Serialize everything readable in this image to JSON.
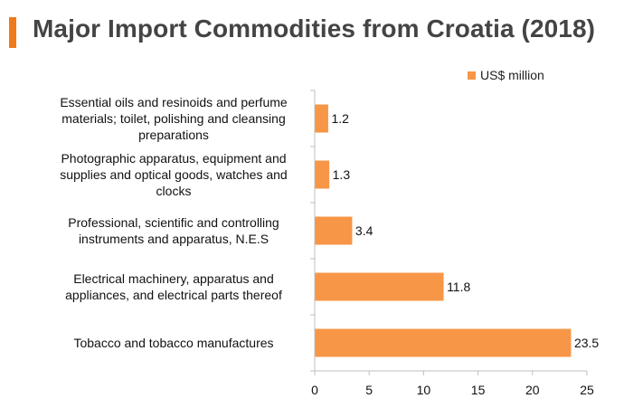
{
  "header": {
    "title": "Major Import Commodities from Croatia (2018)"
  },
  "colors": {
    "accent": "#f07a1a",
    "bar": "#f79646",
    "axis": "#bfbfbf"
  },
  "chart_data": {
    "type": "bar",
    "orientation": "horizontal",
    "title": "Major Import Commodities from Croatia (2018)",
    "xlabel": "",
    "ylabel": "",
    "xlim": [
      0,
      25
    ],
    "xticks": [
      "0",
      "5",
      "10",
      "15",
      "20",
      "25"
    ],
    "grid": false,
    "legend_position": "top-right",
    "categories": [
      "Essential oils and resinoids and perfume materials; toilet, polishing and cleansing preparations",
      "Photographic apparatus, equipment and supplies and optical goods, watches and clocks",
      "Professional, scientific and controlling instruments and apparatus, N.E.S",
      "Electrical machinery, apparatus and appliances, and electrical parts thereof",
      "Tobacco and tobacco manufactures"
    ],
    "category_lines": [
      [
        "Essential oils and resinoids and perfume",
        "materials; toilet, polishing and cleansing",
        "preparations"
      ],
      [
        "Photographic apparatus, equipment and",
        "supplies and optical goods, watches and",
        "clocks"
      ],
      [
        "Professional, scientific and controlling",
        "instruments and apparatus, N.E.S"
      ],
      [
        "Electrical machinery, apparatus and",
        "appliances, and electrical parts thereof"
      ],
      [
        "Tobacco and tobacco manufactures"
      ]
    ],
    "series": [
      {
        "name": "US$ million",
        "values": [
          1.2,
          1.3,
          3.4,
          11.8,
          23.5
        ],
        "labels": [
          "1.2",
          "1.3",
          "3.4",
          "11.8",
          "23.5"
        ]
      }
    ]
  }
}
